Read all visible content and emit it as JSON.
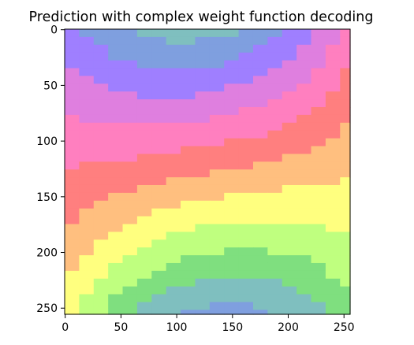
{
  "chart_data": {
    "type": "heatmap",
    "title": "Prediction with complex weight function decoding",
    "xlabel": "",
    "ylabel": "",
    "xlim": [
      0,
      255
    ],
    "ylim": [
      255,
      0
    ],
    "x_ticks": [
      0,
      50,
      100,
      150,
      200,
      250
    ],
    "y_ticks": [
      0,
      50,
      100,
      150,
      200,
      250
    ],
    "x_tick_labels": [
      "0",
      "50",
      "100",
      "150",
      "200",
      "250"
    ],
    "y_tick_labels": [
      "0",
      "50",
      "100",
      "150",
      "200",
      "250"
    ],
    "grid": false,
    "legend": "none",
    "palette": [
      "#ff7f7f",
      "#ffbf7f",
      "#ffff7f",
      "#bfff7f",
      "#7fdf7f",
      "#7fbfbf",
      "#7f9fdf",
      "#9f7fff",
      "#df7fdf",
      "#ff7fbf"
    ],
    "cell_pattern": {
      "grid_size": [
        256,
        256
      ],
      "cell_width": 13,
      "cell_height": 7,
      "band_center_y": 128,
      "band_period": 75,
      "curvature": 0.0085,
      "phase_shift": 0.22,
      "description_of_colors": "hue cycles through pastel rainbow along the y direction, with bands curving upward near x=128 above center and downward below, and a small hue shift with x"
    }
  }
}
